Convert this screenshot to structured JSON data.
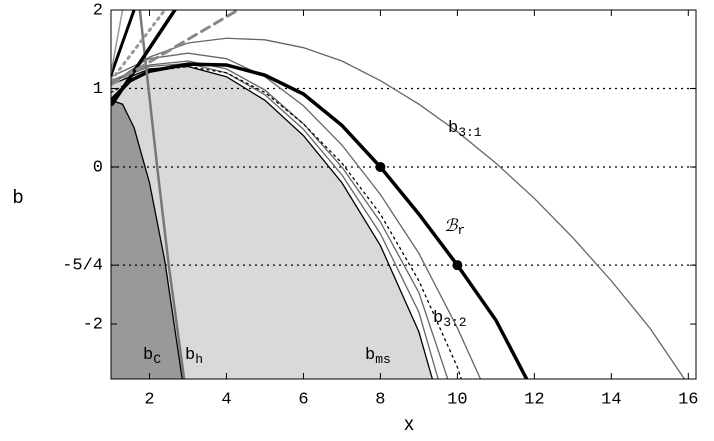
{
  "chart_data": {
    "type": "line",
    "x_label": "x",
    "y_label": "b",
    "xlim": [
      1,
      16.2
    ],
    "ylim": [
      -2.7,
      2
    ],
    "xticks": [
      2,
      4,
      6,
      8,
      10,
      12,
      14,
      16
    ],
    "yticks": [
      -2,
      {
        "value": -1.25,
        "label": "-5/4"
      },
      0,
      1,
      2
    ],
    "hlines": [
      1,
      0,
      -1.25
    ],
    "series": [
      {
        "name": "b",
        "sub": "ms",
        "color": "#000000",
        "fill": "#d9d9d9",
        "x": [
          1,
          2,
          3,
          4,
          5,
          6,
          7,
          8,
          9,
          9.35
        ],
        "values": [
          1.05,
          1.25,
          1.28,
          1.15,
          0.85,
          0.4,
          -0.2,
          -1.0,
          -2.1,
          -2.7
        ]
      },
      {
        "name": "b",
        "sub": "C",
        "color": "#000000",
        "fill": "#999999",
        "x": [
          1,
          1.3,
          1.6,
          2,
          2.4,
          2.7,
          2.85
        ],
        "values": [
          0.85,
          0.8,
          0.5,
          -0.2,
          -1.2,
          -2.2,
          -2.7
        ]
      },
      {
        "color": "#666666",
        "x": [
          1,
          2,
          3,
          4,
          5,
          6,
          7,
          8,
          9,
          10,
          10.6
        ],
        "values": [
          1.15,
          1.38,
          1.45,
          1.38,
          1.15,
          0.78,
          0.28,
          -0.35,
          -1.1,
          -2.05,
          -2.7
        ]
      },
      {
        "color": "#666666",
        "x": [
          1,
          2,
          3,
          4,
          5,
          6,
          7,
          8,
          9,
          9.75
        ],
        "values": [
          1.1,
          1.3,
          1.35,
          1.25,
          0.98,
          0.55,
          0.0,
          -0.7,
          -1.6,
          -2.7
        ]
      },
      {
        "color": "#666666",
        "x": [
          1,
          2,
          3,
          4,
          5,
          6,
          7,
          8,
          9,
          9.5
        ],
        "values": [
          1.08,
          1.28,
          1.32,
          1.2,
          0.92,
          0.48,
          -0.1,
          -0.85,
          -1.85,
          -2.7
        ]
      },
      {
        "name": "b",
        "sub": "3:2",
        "color": "#000000",
        "dash": "2,4",
        "x": [
          1,
          2,
          3,
          4,
          5,
          6,
          7,
          8,
          9,
          10,
          10.1
        ],
        "values": [
          0.95,
          1.22,
          1.28,
          1.2,
          0.95,
          0.55,
          0.05,
          -0.6,
          -1.45,
          -2.55,
          -2.7
        ]
      },
      {
        "name": "b",
        "sub": "3:1",
        "color": "#666666",
        "x": [
          1,
          2,
          3,
          4,
          5,
          6,
          7,
          8,
          9,
          10,
          11,
          12,
          13,
          14,
          15,
          15.9
        ],
        "values": [
          1.05,
          1.4,
          1.58,
          1.64,
          1.62,
          1.52,
          1.35,
          1.1,
          0.8,
          0.45,
          0.05,
          -0.4,
          -0.9,
          -1.45,
          -2.05,
          -2.7
        ]
      },
      {
        "name": "ℬ",
        "sub": "r",
        "color": "#000000",
        "width": 3.5,
        "x": [
          1,
          1.5,
          2,
          3,
          4,
          5,
          6,
          7,
          8,
          9,
          10,
          11,
          11.8
        ],
        "values": [
          0.85,
          1.1,
          1.22,
          1.31,
          1.3,
          1.17,
          0.93,
          0.53,
          0,
          -0.6,
          -1.25,
          -1.95,
          -2.7
        ],
        "points": {
          "x": [
            8,
            10
          ],
          "values": [
            0,
            -1.25
          ]
        }
      },
      {
        "name": "b",
        "sub": "h",
        "color": "#777777",
        "width": 2.5,
        "x": [
          1.75,
          2.2,
          2.5,
          2.9
        ],
        "values": [
          2,
          0,
          -1.25,
          -2.7
        ]
      },
      {
        "color": "#000000",
        "width": 3.5,
        "x": [
          1.03,
          2.66
        ],
        "values": [
          0.8,
          2
        ]
      },
      {
        "color": "#000000",
        "width": 3,
        "x": [
          1,
          1.6
        ],
        "values": [
          1.17,
          2
        ]
      },
      {
        "color": "#888888",
        "width": 3,
        "dash": "9,6",
        "x": [
          1,
          4.3
        ],
        "values": [
          1.05,
          2
        ]
      },
      {
        "color": "#999999",
        "width": 3,
        "dash": "2,5",
        "x": [
          1,
          2.4
        ],
        "values": [
          1.1,
          2
        ]
      },
      {
        "color": "#999999",
        "width": 1.5,
        "x": [
          1,
          1.3
        ],
        "values": [
          1.2,
          2
        ]
      }
    ]
  }
}
